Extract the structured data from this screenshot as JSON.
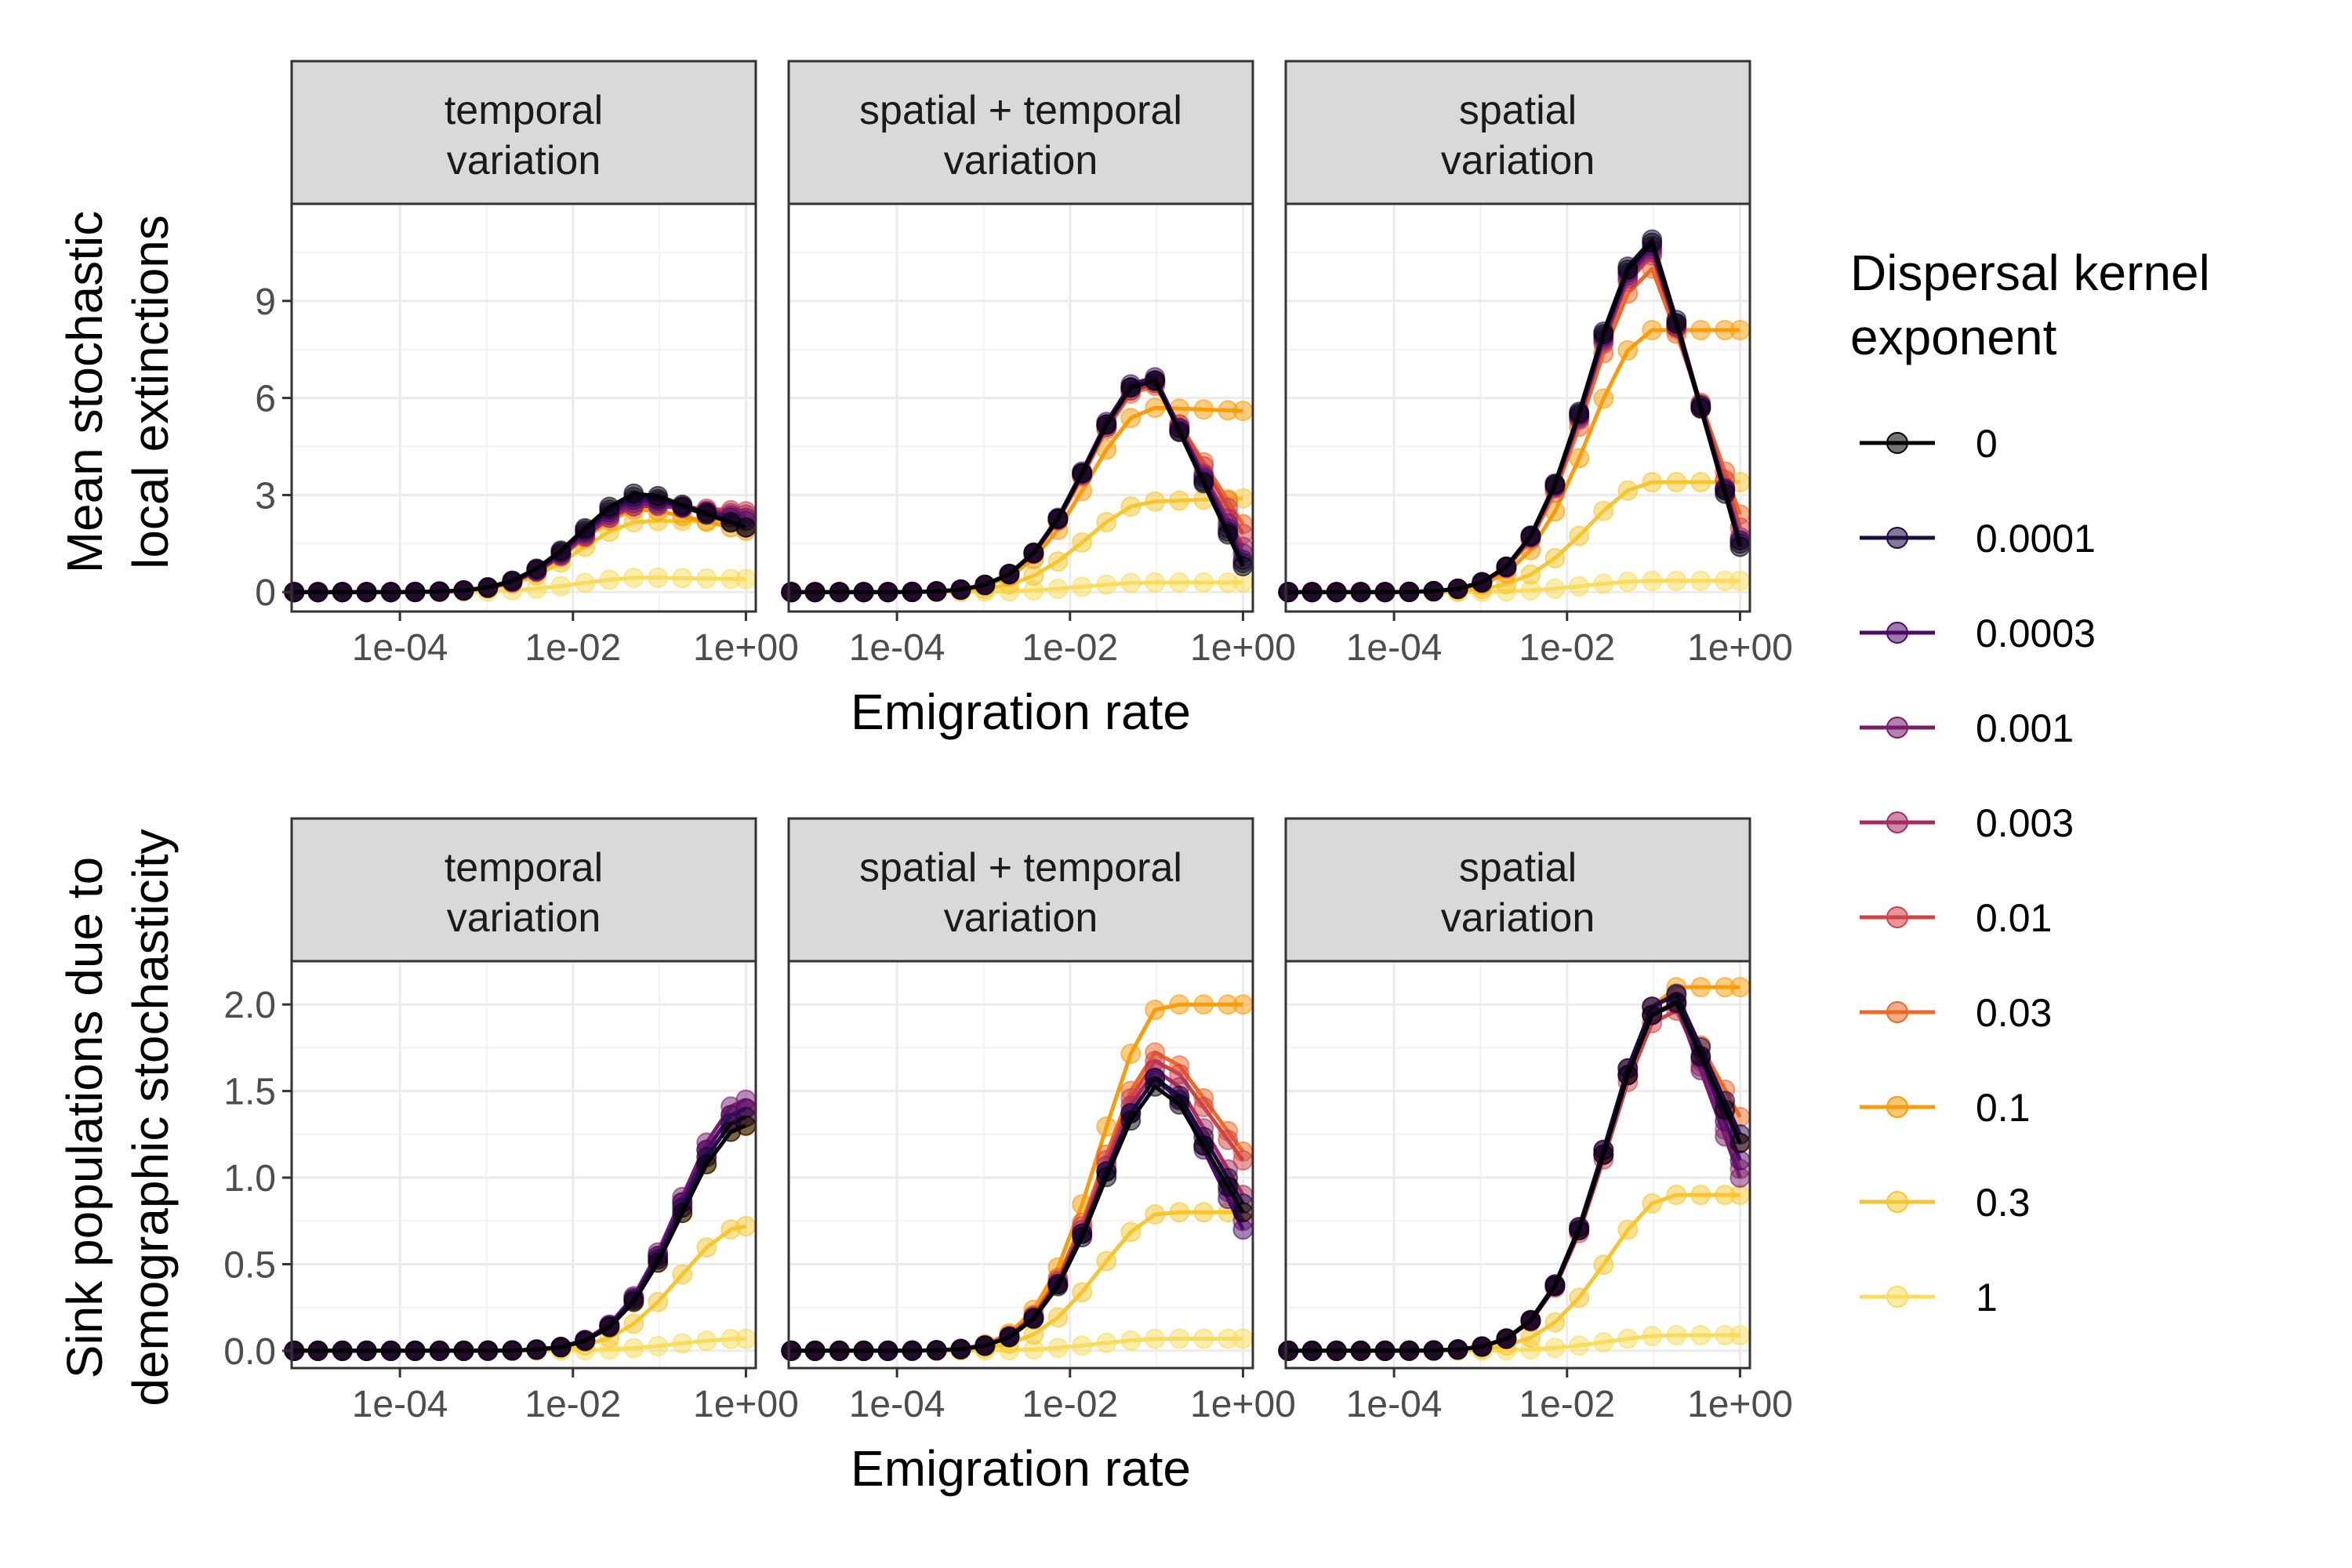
{
  "chart_data": {
    "type": "line",
    "x_scale": "log10",
    "xlim": [
      5.6e-06,
      1.3
    ],
    "x_ticks": [
      "1e-04",
      "1e-02",
      "1e+00"
    ],
    "x_tick_values": [
      0.0001,
      0.01,
      1
    ],
    "facets": [
      "temporal\nvariation",
      "spatial + temporal\nvariation",
      "spatial\nvariation"
    ],
    "xlabel": "Emigration rate",
    "legend": {
      "title": "Dispersal kernel\n exponent",
      "placement": "right",
      "entries": [
        "0",
        "0.0001",
        "0.0003",
        "0.001",
        "0.003",
        "0.01",
        "0.03",
        "0.1",
        "0.3",
        "1"
      ],
      "colors": [
        "#000004",
        "#1b0c41",
        "#4a0c6b",
        "#781c6d",
        "#a52c60",
        "#cf4446",
        "#ed6925",
        "#fb9b06",
        "#f7d13d",
        "#fcffa4"
      ]
    },
    "colors": [
      "#000004",
      "#1b0c41",
      "#4a0c6b",
      "#781c6d",
      "#a52c60",
      "#cf4446",
      "#ed6925",
      "#fb9b06",
      "#f7c62f",
      "#f9dc5c"
    ],
    "x": [
      6e-06,
      1.13e-05,
      2.16e-05,
      4.12e-05,
      7.87e-05,
      0.00015,
      0.000287,
      0.000547,
      0.00104,
      0.00199,
      0.0038,
      0.00725,
      0.0138,
      0.0264,
      0.0504,
      0.0962,
      0.184,
      0.351,
      0.669,
      1.0
    ],
    "panels": [
      {
        "row": 0,
        "ylabel": "Mean stochastic\nlocal extinctions",
        "ylim": [
          -0.6,
          12.0
        ],
        "y_ticks": [
          "0",
          "3",
          "6",
          "9"
        ],
        "y_tick_values": [
          0,
          3,
          6,
          9
        ],
        "facets": [
          {
            "peak": [
              3.1,
              3.0,
              2.9,
              2.8,
              2.7,
              2.7,
              2.8,
              2.6,
              2.2,
              0.45
            ],
            "peak_x": 0.07,
            "end": [
              2.0,
              2.0,
              2.2,
              2.3,
              2.4,
              2.5,
              2.3,
              1.9,
              2.2,
              0.4
            ]
          },
          {
            "peak": [
              6.7,
              6.7,
              6.8,
              6.7,
              6.6,
              6.6,
              6.5,
              5.7,
              2.8,
              0.3
            ],
            "peak_x": 0.09,
            "end": [
              0.8,
              0.9,
              1.0,
              1.2,
              1.4,
              1.8,
              2.1,
              5.6,
              2.9,
              0.3
            ]
          },
          {
            "peak": [
              10.8,
              10.9,
              10.7,
              10.6,
              10.5,
              10.4,
              10.0,
              8.1,
              3.4,
              0.35
            ],
            "peak_x": 0.1,
            "end": [
              1.4,
              1.5,
              1.6,
              1.6,
              1.7,
              2.0,
              2.4,
              8.1,
              3.4,
              0.35
            ]
          }
        ]
      },
      {
        "row": 1,
        "ylabel": "Sink populations due to\ndemographic stochasticity",
        "ylim": [
          -0.1,
          2.25
        ],
        "y_ticks": [
          "0.0",
          "0.5",
          "1.0",
          "1.5",
          "2.0"
        ],
        "y_tick_values": [
          0.0,
          0.5,
          1.0,
          1.5,
          2.0
        ],
        "facets": [
          {
            "peak": [
              1.3,
              1.35,
              1.4,
              1.45,
              1.4,
              1.4,
              1.35,
              1.3,
              0.72,
              0.07
            ],
            "peak_x": 1.0,
            "end": [
              1.3,
              1.35,
              1.4,
              1.45,
              1.4,
              1.4,
              1.35,
              1.3,
              0.72,
              0.07
            ]
          },
          {
            "peak": [
              1.55,
              1.6,
              1.6,
              1.6,
              1.65,
              1.7,
              1.75,
              2.0,
              0.8,
              0.07
            ],
            "peak_x": 0.13,
            "end": [
              0.8,
              0.85,
              0.7,
              0.75,
              0.9,
              1.1,
              1.15,
              2.0,
              0.8,
              0.07
            ]
          },
          {
            "peak": [
              2.05,
              2.1,
              2.1,
              2.05,
              2.05,
              2.0,
              2.05,
              2.1,
              0.9,
              0.09
            ],
            "peak_x": 0.17,
            "end": [
              1.2,
              1.25,
              1.1,
              1.0,
              1.05,
              1.2,
              1.35,
              2.1,
              0.9,
              0.09
            ]
          }
        ]
      }
    ]
  }
}
